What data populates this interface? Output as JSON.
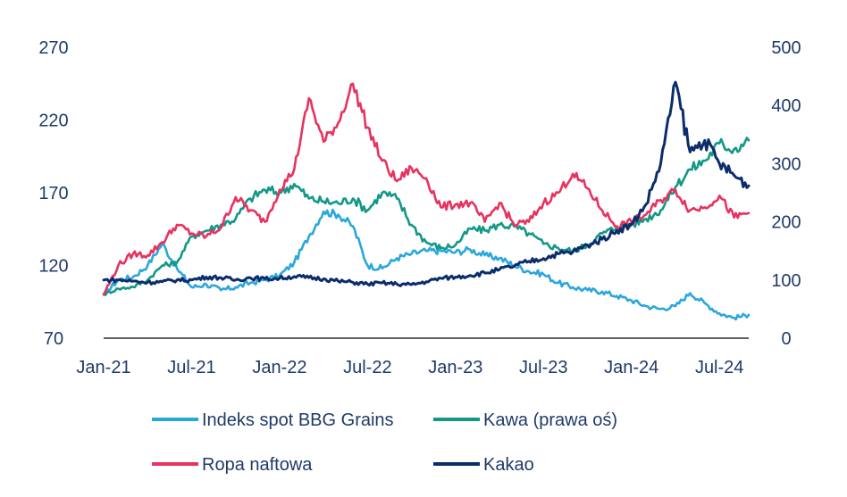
{
  "chart_data": {
    "type": "line",
    "title": "",
    "x_ticks": [
      "Jan-21",
      "Jul-21",
      "Jan-22",
      "Jul-22",
      "Jan-23",
      "Jul-23",
      "Jan-24",
      "Jul-24"
    ],
    "x_range": [
      "2021-01",
      "2024-09"
    ],
    "left_axis": {
      "ticks": [
        "70",
        "120",
        "170",
        "220",
        "270"
      ],
      "ylim": [
        70,
        270
      ]
    },
    "right_axis": {
      "ticks": [
        "0",
        "100",
        "200",
        "300",
        "400",
        "500"
      ],
      "ylim": [
        0,
        500
      ]
    },
    "grid": false,
    "legend_position": "bottom",
    "series": [
      {
        "name": "Indeks spot BBG Grains",
        "axis": "left",
        "color": "#2aa7db",
        "points": [
          [
            "2021-01",
            100
          ],
          [
            "2021-02",
            110
          ],
          [
            "2021-03",
            112
          ],
          [
            "2021-04",
            120
          ],
          [
            "2021-05",
            135
          ],
          [
            "2021-06",
            118
          ],
          [
            "2021-07",
            105
          ],
          [
            "2021-08",
            107
          ],
          [
            "2021-09",
            103
          ],
          [
            "2021-10",
            105
          ],
          [
            "2021-11",
            108
          ],
          [
            "2021-12",
            110
          ],
          [
            "2022-01",
            113
          ],
          [
            "2022-02",
            122
          ],
          [
            "2022-03",
            140
          ],
          [
            "2022-04",
            157
          ],
          [
            "2022-05",
            155
          ],
          [
            "2022-06",
            147
          ],
          [
            "2022-07",
            120
          ],
          [
            "2022-08",
            118
          ],
          [
            "2022-09",
            125
          ],
          [
            "2022-10",
            128
          ],
          [
            "2022-11",
            130
          ],
          [
            "2022-12",
            130
          ],
          [
            "2023-01",
            129
          ],
          [
            "2023-02",
            131
          ],
          [
            "2023-03",
            127
          ],
          [
            "2023-04",
            125
          ],
          [
            "2023-05",
            120
          ],
          [
            "2023-06",
            116
          ],
          [
            "2023-07",
            114
          ],
          [
            "2023-08",
            108
          ],
          [
            "2023-09",
            105
          ],
          [
            "2023-10",
            103
          ],
          [
            "2023-11",
            102
          ],
          [
            "2023-12",
            99
          ],
          [
            "2024-01",
            96
          ],
          [
            "2024-02",
            92
          ],
          [
            "2024-03",
            90
          ],
          [
            "2024-04",
            92
          ],
          [
            "2024-05",
            101
          ],
          [
            "2024-06",
            94
          ],
          [
            "2024-07",
            87
          ],
          [
            "2024-08",
            84
          ],
          [
            "2024-09",
            86
          ]
        ]
      },
      {
        "name": "Kawa (prawa oś)",
        "axis": "right",
        "color": "#139887",
        "points": [
          [
            "2021-01",
            75
          ],
          [
            "2021-02",
            85
          ],
          [
            "2021-03",
            88
          ],
          [
            "2021-04",
            100
          ],
          [
            "2021-05",
            125
          ],
          [
            "2021-06",
            130
          ],
          [
            "2021-07",
            175
          ],
          [
            "2021-08",
            185
          ],
          [
            "2021-09",
            195
          ],
          [
            "2021-10",
            205
          ],
          [
            "2021-11",
            240
          ],
          [
            "2021-12",
            255
          ],
          [
            "2022-01",
            250
          ],
          [
            "2022-02",
            265
          ],
          [
            "2022-03",
            240
          ],
          [
            "2022-04",
            235
          ],
          [
            "2022-05",
            232
          ],
          [
            "2022-06",
            240
          ],
          [
            "2022-07",
            220
          ],
          [
            "2022-08",
            250
          ],
          [
            "2022-09",
            240
          ],
          [
            "2022-10",
            195
          ],
          [
            "2022-11",
            165
          ],
          [
            "2022-12",
            155
          ],
          [
            "2023-01",
            160
          ],
          [
            "2023-02",
            188
          ],
          [
            "2023-03",
            185
          ],
          [
            "2023-04",
            195
          ],
          [
            "2023-05",
            192
          ],
          [
            "2023-06",
            180
          ],
          [
            "2023-07",
            162
          ],
          [
            "2023-08",
            155
          ],
          [
            "2023-09",
            150
          ],
          [
            "2023-10",
            160
          ],
          [
            "2023-11",
            180
          ],
          [
            "2023-12",
            190
          ],
          [
            "2024-01",
            195
          ],
          [
            "2024-02",
            205
          ],
          [
            "2024-03",
            220
          ],
          [
            "2024-04",
            260
          ],
          [
            "2024-05",
            290
          ],
          [
            "2024-06",
            305
          ],
          [
            "2024-07",
            335
          ],
          [
            "2024-08",
            325
          ],
          [
            "2024-09",
            340
          ]
        ]
      },
      {
        "name": "Ropa naftowa",
        "axis": "left",
        "color": "#e8325f",
        "points": [
          [
            "2021-01",
            100
          ],
          [
            "2021-02",
            120
          ],
          [
            "2021-03",
            128
          ],
          [
            "2021-04",
            127
          ],
          [
            "2021-05",
            136
          ],
          [
            "2021-06",
            148
          ],
          [
            "2021-07",
            142
          ],
          [
            "2021-08",
            140
          ],
          [
            "2021-09",
            146
          ],
          [
            "2021-10",
            167
          ],
          [
            "2021-11",
            158
          ],
          [
            "2021-12",
            150
          ],
          [
            "2022-01",
            172
          ],
          [
            "2022-02",
            186
          ],
          [
            "2022-03",
            235
          ],
          [
            "2022-04",
            205
          ],
          [
            "2022-05",
            218
          ],
          [
            "2022-06",
            245
          ],
          [
            "2022-07",
            215
          ],
          [
            "2022-08",
            192
          ],
          [
            "2022-09",
            178
          ],
          [
            "2022-10",
            187
          ],
          [
            "2022-11",
            180
          ],
          [
            "2022-12",
            160
          ],
          [
            "2023-01",
            162
          ],
          [
            "2023-02",
            163
          ],
          [
            "2023-03",
            150
          ],
          [
            "2023-04",
            163
          ],
          [
            "2023-05",
            148
          ],
          [
            "2023-06",
            150
          ],
          [
            "2023-07",
            163
          ],
          [
            "2023-08",
            170
          ],
          [
            "2023-09",
            183
          ],
          [
            "2023-10",
            173
          ],
          [
            "2023-11",
            158
          ],
          [
            "2023-12",
            147
          ],
          [
            "2024-01",
            150
          ],
          [
            "2024-02",
            155
          ],
          [
            "2024-03",
            165
          ],
          [
            "2024-04",
            172
          ],
          [
            "2024-05",
            158
          ],
          [
            "2024-06",
            160
          ],
          [
            "2024-07",
            168
          ],
          [
            "2024-08",
            153
          ],
          [
            "2024-09",
            156
          ]
        ]
      },
      {
        "name": "Kakao",
        "axis": "right",
        "color": "#0c2d6b",
        "points": [
          [
            "2021-01",
            100
          ],
          [
            "2021-02",
            100
          ],
          [
            "2021-03",
            98
          ],
          [
            "2021-04",
            96
          ],
          [
            "2021-05",
            97
          ],
          [
            "2021-06",
            100
          ],
          [
            "2021-07",
            100
          ],
          [
            "2021-08",
            105
          ],
          [
            "2021-09",
            104
          ],
          [
            "2021-10",
            100
          ],
          [
            "2021-11",
            104
          ],
          [
            "2021-12",
            102
          ],
          [
            "2022-01",
            103
          ],
          [
            "2022-02",
            106
          ],
          [
            "2022-03",
            104
          ],
          [
            "2022-04",
            102
          ],
          [
            "2022-05",
            98
          ],
          [
            "2022-06",
            96
          ],
          [
            "2022-07",
            93
          ],
          [
            "2022-08",
            95
          ],
          [
            "2022-09",
            93
          ],
          [
            "2022-10",
            92
          ],
          [
            "2022-11",
            97
          ],
          [
            "2022-12",
            103
          ],
          [
            "2023-01",
            105
          ],
          [
            "2023-02",
            108
          ],
          [
            "2023-03",
            112
          ],
          [
            "2023-04",
            118
          ],
          [
            "2023-05",
            124
          ],
          [
            "2023-06",
            132
          ],
          [
            "2023-07",
            137
          ],
          [
            "2023-08",
            145
          ],
          [
            "2023-09",
            148
          ],
          [
            "2023-10",
            160
          ],
          [
            "2023-11",
            170
          ],
          [
            "2023-12",
            185
          ],
          [
            "2024-01",
            195
          ],
          [
            "2024-02",
            230
          ],
          [
            "2024-03",
            300
          ],
          [
            "2024-04",
            440
          ],
          [
            "2024-05",
            320
          ],
          [
            "2024-06",
            340
          ],
          [
            "2024-07",
            300
          ],
          [
            "2024-08",
            280
          ],
          [
            "2024-09",
            262
          ]
        ]
      }
    ]
  }
}
